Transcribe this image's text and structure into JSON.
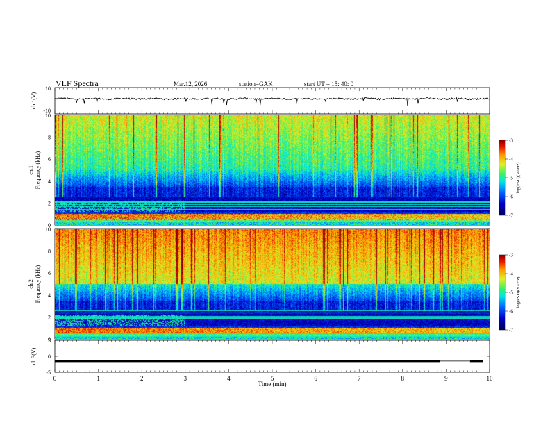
{
  "header": {
    "title": "VLF  Spectra",
    "date": "Mar.12, 2026",
    "station": "station=GAK",
    "start": "start  UT  =   15: 40: 0"
  },
  "chart_data": [
    {
      "type": "line",
      "name": "ch1-waveform",
      "ylabel": "ch.1(V)",
      "ylim": [
        -10,
        10
      ],
      "y_ticks": [
        "10",
        "-10"
      ],
      "baseline": 1.5,
      "color": "#000000"
    },
    {
      "type": "heatmap",
      "name": "ch1-spectrogram",
      "ylabel_channel": "ch.1",
      "ylabel": "Frequency  (kHz)",
      "ylim": [
        0,
        10
      ],
      "y_ticks": [
        "0",
        "2",
        "4",
        "6",
        "8",
        "10"
      ],
      "colorbar": {
        "label": "log(PSD)(V²/Hz)",
        "range": [
          -7,
          -3
        ],
        "ticks": [
          "-3",
          "-4",
          "-5",
          "-6",
          "-7"
        ]
      }
    },
    {
      "type": "heatmap",
      "name": "ch2-spectrogram",
      "ylabel_channel": "ch.2",
      "ylabel": "Frequency  (kHz)",
      "ylim": [
        0,
        10
      ],
      "y_ticks": [
        "0",
        "2",
        "4",
        "6",
        "8",
        "10"
      ],
      "colorbar": {
        "label": "log(PSD)(V²/Hz)",
        "range": [
          -7,
          -3
        ],
        "ticks": [
          "-3",
          "-4",
          "-5",
          "-6",
          "-7"
        ]
      }
    },
    {
      "type": "line",
      "name": "ch3-signal",
      "ylabel": "ch.3(V)",
      "ylim": [
        -5,
        5
      ],
      "y_ticks": [
        "5",
        "0",
        "-5"
      ],
      "level": -1.5,
      "gap_start_min": 8.85,
      "gap_end_min": 9.55,
      "color": "#000000"
    }
  ],
  "xaxis": {
    "label": "Time  (min)",
    "range": [
      0,
      10
    ],
    "ticks": [
      "0",
      "1",
      "2",
      "3",
      "4",
      "5",
      "6",
      "7",
      "8",
      "9",
      "10"
    ]
  }
}
